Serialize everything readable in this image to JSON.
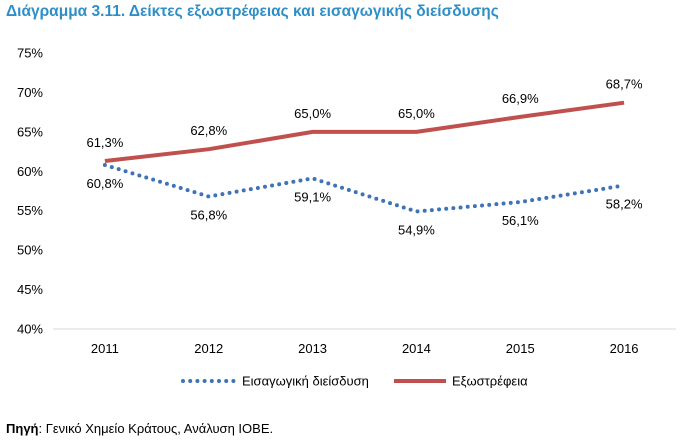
{
  "chart_data": {
    "type": "line",
    "title": "Διάγραμμα 3.11. Δείκτες εξωστρέφειας και εισαγωγικής διείσδυσης",
    "categories": [
      "2011",
      "2012",
      "2013",
      "2014",
      "2015",
      "2016"
    ],
    "y_ticks": [
      "40%",
      "45%",
      "50%",
      "55%",
      "60%",
      "65%",
      "70%",
      "75%"
    ],
    "ylim": [
      40,
      75
    ],
    "grid": false,
    "legend_position": "bottom",
    "series": [
      {
        "name": "Εισαγωγική διείσδυση",
        "values": [
          60.8,
          56.8,
          59.1,
          54.9,
          56.1,
          58.2
        ],
        "labels": [
          "60,8%",
          "56,8%",
          "59,1%",
          "54,9%",
          "56,1%",
          "58,2%"
        ],
        "color": "#3e73b8",
        "style": "dotted",
        "label_position": "below"
      },
      {
        "name": "Εξωστρέφεια",
        "values": [
          61.3,
          62.8,
          65.0,
          65.0,
          66.9,
          68.7
        ],
        "labels": [
          "61,3%",
          "62,8%",
          "65,0%",
          "65,0%",
          "66,9%",
          "68,7%"
        ],
        "color": "#c0504d",
        "style": "solid",
        "label_position": "above"
      }
    ]
  },
  "source": {
    "label": "Πηγή",
    "text": ": Γενικό Χημείο Κράτους, Ανάλυση ΙΟΒΕ."
  }
}
